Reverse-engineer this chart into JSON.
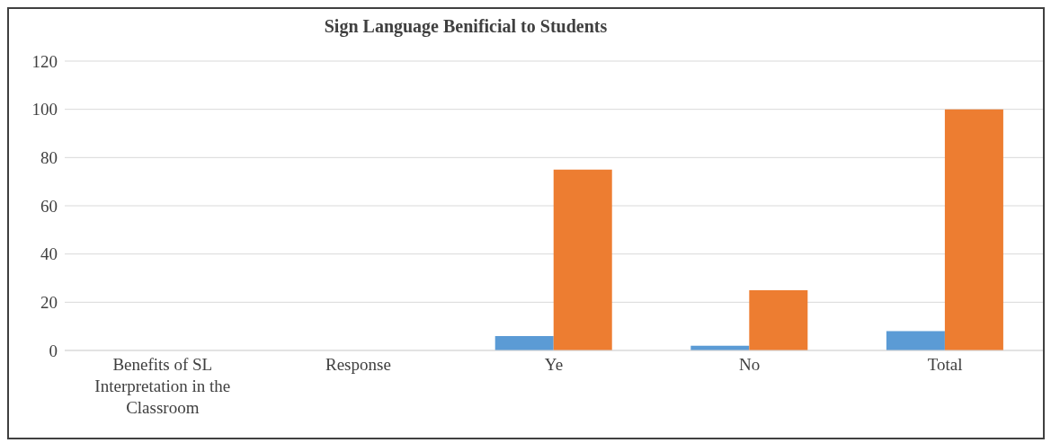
{
  "chart_data": {
    "type": "bar",
    "title": "Sign Language Benificial to Students",
    "categories": [
      "Benefits of SL Interpretation in the Classroom",
      "Response",
      "Ye",
      "No",
      "Total"
    ],
    "series": [
      {
        "color": "#5b9bd5",
        "values": [
          null,
          null,
          6,
          2,
          8
        ]
      },
      {
        "color": "#ed7d31",
        "values": [
          null,
          null,
          75,
          25,
          100
        ]
      }
    ],
    "ylim": [
      0,
      120
    ],
    "yticks": [
      0,
      20,
      40,
      60,
      80,
      100,
      120
    ],
    "grid": "y"
  }
}
